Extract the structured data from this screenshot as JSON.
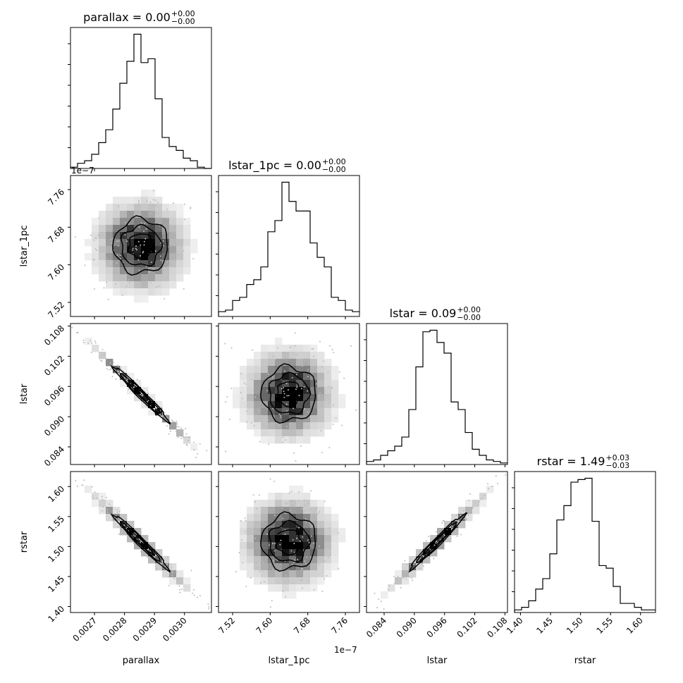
{
  "chart_data": {
    "type": "corner",
    "parameters": [
      "parallax",
      "lstar_1pc",
      "lstar",
      "rstar"
    ],
    "titles": [
      {
        "param": "parallax",
        "prefix": "parallax = ",
        "median": "0.00",
        "plus": "+0.00",
        "minus": "−0.00"
      },
      {
        "param": "lstar_1pc",
        "prefix": "lstar_1pc = ",
        "median": "0.00",
        "plus": "+0.00",
        "minus": "−0.00"
      },
      {
        "param": "lstar",
        "prefix": "lstar = ",
        "median": "0.09",
        "plus": "+0.00",
        "minus": "−0.00"
      },
      {
        "param": "rstar",
        "prefix": "rstar = ",
        "median": "1.49",
        "plus": "+0.03",
        "minus": "−0.03"
      }
    ],
    "axis_labels": [
      "parallax",
      "lstar_1pc",
      "lstar",
      "rstar"
    ],
    "ranges": [
      [
        0.00262,
        0.00309
      ],
      [
        7.49,
        7.79
      ],
      [
        0.0805,
        0.1085
      ],
      [
        1.39,
        1.625
      ]
    ],
    "ticks": [
      {
        "values": [
          0.0027,
          0.0028,
          0.0029,
          0.003
        ],
        "labels": [
          "0.0027",
          "0.0028",
          "0.0029",
          "0.0030"
        ]
      },
      {
        "values": [
          7.52,
          7.6,
          7.68,
          7.76
        ],
        "labels": [
          "7.52",
          "7.60",
          "7.68",
          "7.76"
        ]
      },
      {
        "values": [
          0.084,
          0.09,
          0.096,
          0.102,
          0.108
        ],
        "labels": [
          "0.084",
          "0.090",
          "0.096",
          "0.102",
          "0.108"
        ]
      },
      {
        "values": [
          1.4,
          1.45,
          1.5,
          1.55,
          1.6
        ],
        "labels": [
          "1.40",
          "1.45",
          "1.50",
          "1.55",
          "1.60"
        ]
      }
    ],
    "offset_text": "1e−7",
    "histograms": [
      {
        "param": "parallax",
        "counts": [
          1,
          4,
          6,
          11,
          20,
          30,
          46,
          66,
          83,
          104,
          82,
          85,
          54,
          24,
          17,
          14,
          8,
          6,
          1,
          0
        ]
      },
      {
        "param": "lstar_1pc",
        "counts": [
          3,
          4,
          10,
          12,
          20,
          23,
          31,
          53,
          60,
          84,
          72,
          66,
          66,
          46,
          37,
          31,
          12,
          10,
          4,
          3
        ]
      },
      {
        "param": "lstar",
        "counts": [
          2,
          3,
          6,
          9,
          12,
          18,
          36,
          64,
          87,
          88,
          80,
          73,
          41,
          36,
          21,
          10,
          6,
          3,
          2,
          1
        ]
      },
      {
        "param": "rstar",
        "counts": [
          2,
          4,
          9,
          18,
          26,
          45,
          71,
          82,
          100,
          102,
          103,
          70,
          36,
          34,
          20,
          7,
          7,
          4,
          2,
          2
        ]
      }
    ],
    "correlations": [
      {
        "x": "lstar_1pc",
        "y": "parallax",
        "rho": 0.0
      },
      {
        "x": "lstar",
        "y": "parallax",
        "rho": -0.99
      },
      {
        "x": "lstar",
        "y": "lstar_1pc",
        "rho": 0.0
      },
      {
        "x": "rstar",
        "y": "parallax",
        "rho": -0.98
      },
      {
        "x": "rstar",
        "y": "lstar_1pc",
        "rho": 0.0
      },
      {
        "x": "rstar",
        "y": "lstar",
        "rho": 0.98
      }
    ],
    "colors": {
      "line": "#000000",
      "background": "#ffffff",
      "density": "#000000"
    }
  }
}
